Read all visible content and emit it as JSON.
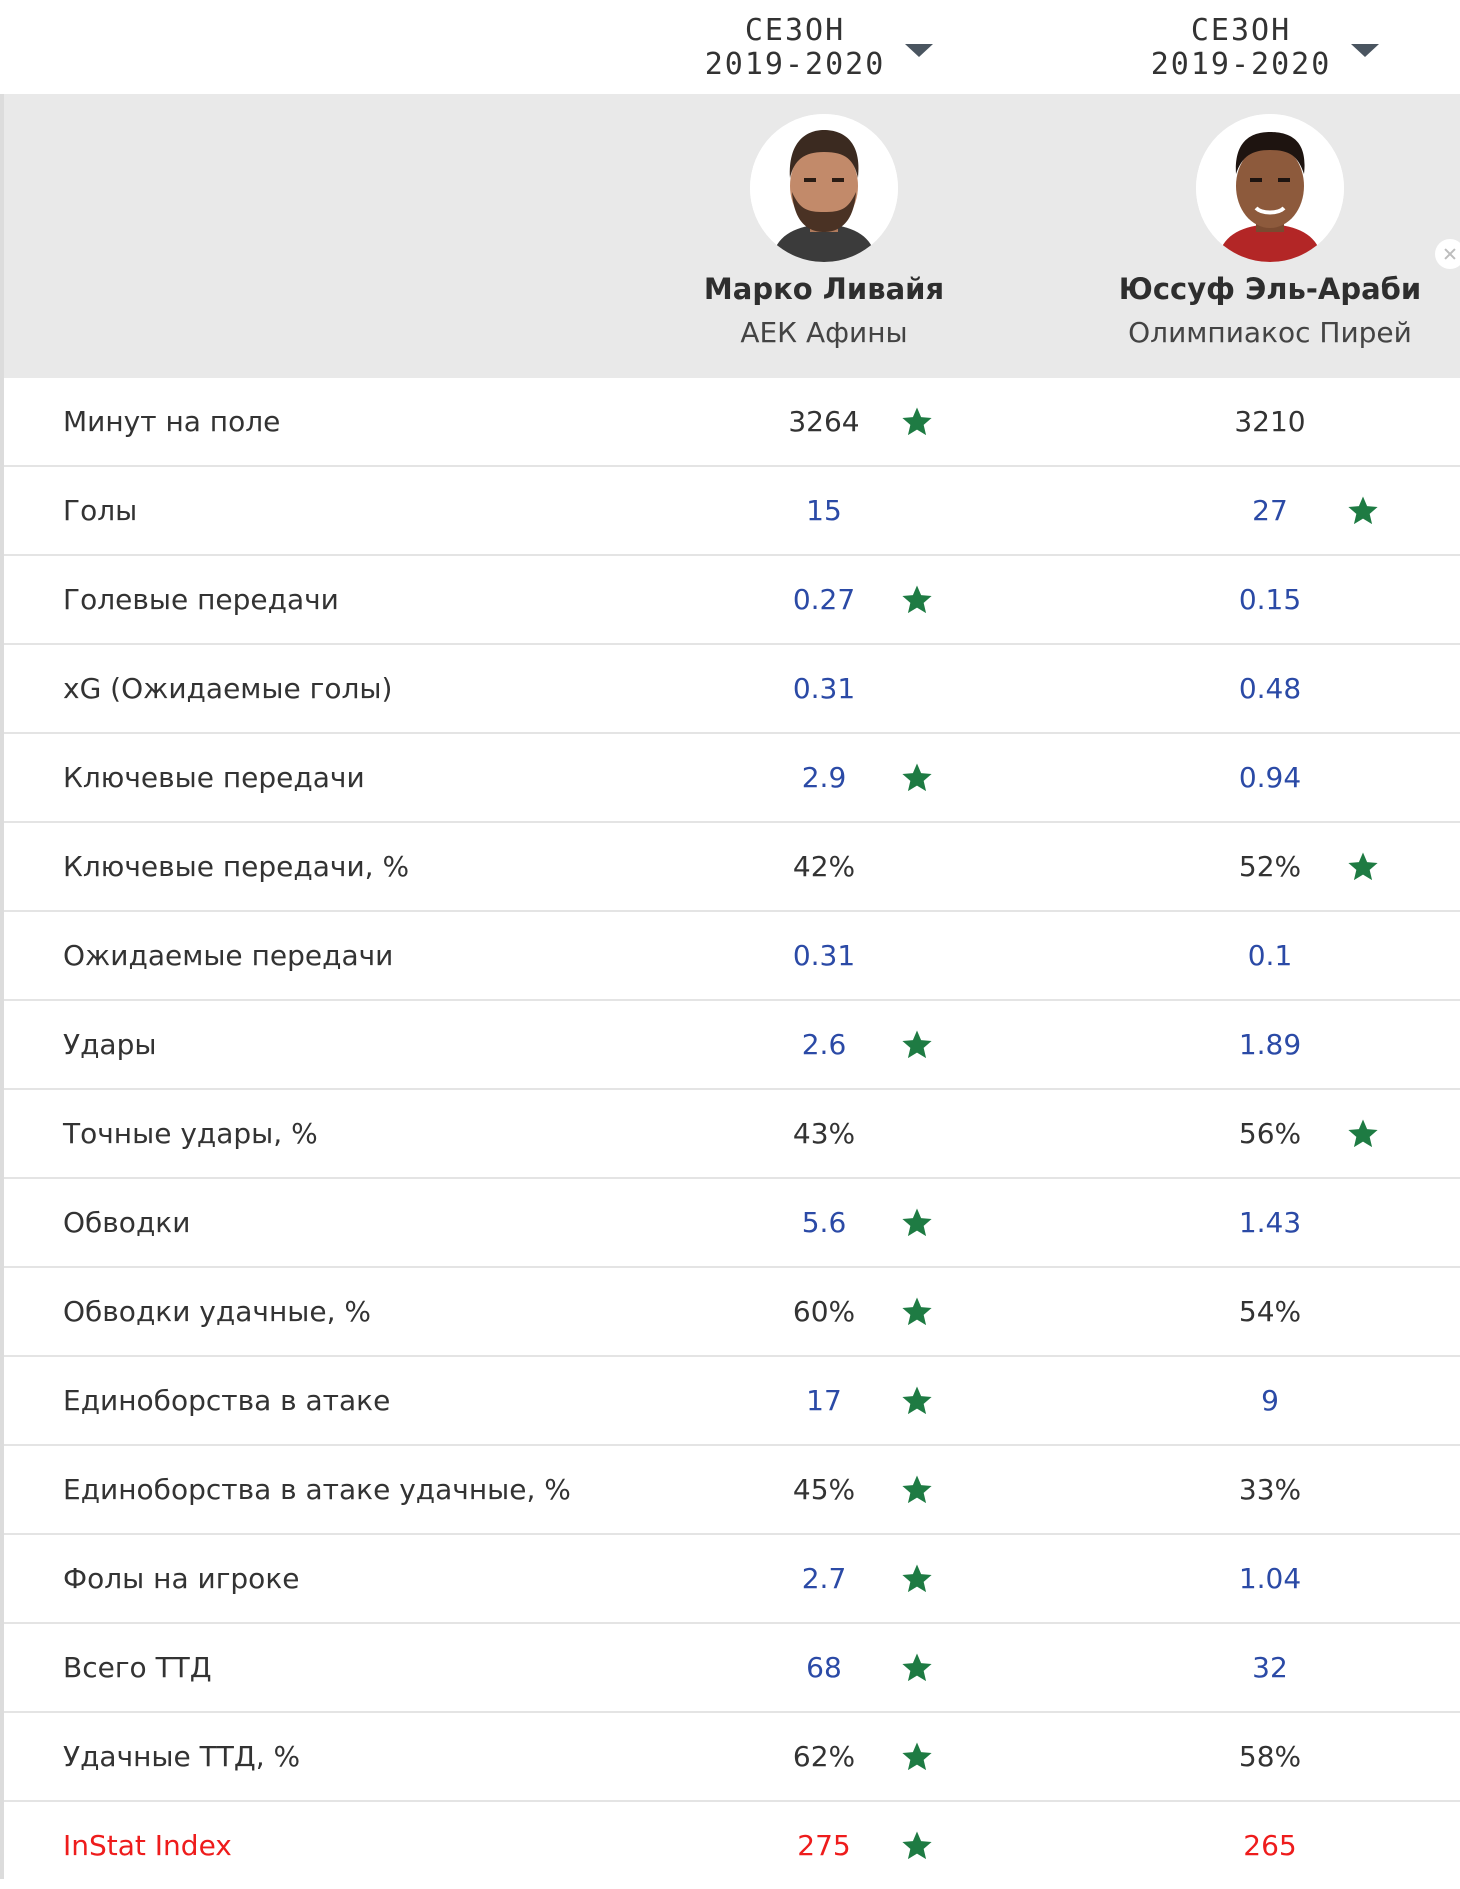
{
  "season_selectors": [
    {
      "label_line1": "СЕЗОН",
      "label_line2": "2019-2020"
    },
    {
      "label_line1": "СЕЗОН",
      "label_line2": "2019-2020"
    }
  ],
  "players": [
    {
      "name": "Марко Ливайя",
      "team": "АЕК Афины"
    },
    {
      "name": "Юссуф Эль-Араби",
      "team": "Олимпиакос Пирей"
    }
  ],
  "colors": {
    "star": "#1e7b43",
    "value_blue": "#2b4aa6",
    "highlight_red": "#ee1c1c",
    "header_bg": "#e9e9e9"
  },
  "stats": [
    {
      "label": "Минут на поле",
      "p1": "3264",
      "p2": "3210",
      "best": 1,
      "style": "dark"
    },
    {
      "label": "Голы",
      "p1": "15",
      "p2": "27",
      "best": 2,
      "style": "blue"
    },
    {
      "label": "Голевые передачи",
      "p1": "0.27",
      "p2": "0.15",
      "best": 1,
      "style": "blue"
    },
    {
      "label": "xG (Ожидаемые голы)",
      "p1": "0.31",
      "p2": "0.48",
      "best": 0,
      "style": "blue"
    },
    {
      "label": "Ключевые передачи",
      "p1": "2.9",
      "p2": "0.94",
      "best": 1,
      "style": "blue"
    },
    {
      "label": "Ключевые передачи, %",
      "p1": "42%",
      "p2": "52%",
      "best": 2,
      "style": "dark"
    },
    {
      "label": "Ожидаемые передачи",
      "p1": "0.31",
      "p2": "0.1",
      "best": 0,
      "style": "blue"
    },
    {
      "label": "Удары",
      "p1": "2.6",
      "p2": "1.89",
      "best": 1,
      "style": "blue"
    },
    {
      "label": "Точные удары, %",
      "p1": "43%",
      "p2": "56%",
      "best": 2,
      "style": "dark"
    },
    {
      "label": "Обводки",
      "p1": "5.6",
      "p2": "1.43",
      "best": 1,
      "style": "blue"
    },
    {
      "label": "Обводки удачные, %",
      "p1": "60%",
      "p2": "54%",
      "best": 1,
      "style": "dark"
    },
    {
      "label": "Единоборства в атаке",
      "p1": "17",
      "p2": "9",
      "best": 1,
      "style": "blue"
    },
    {
      "label": "Единоборства в атаке удачные, %",
      "p1": "45%",
      "p2": "33%",
      "best": 1,
      "style": "dark"
    },
    {
      "label": "Фолы на игроке",
      "p1": "2.7",
      "p2": "1.04",
      "best": 1,
      "style": "blue"
    },
    {
      "label": "Всего ТТД",
      "p1": "68",
      "p2": "32",
      "best": 1,
      "style": "blue"
    },
    {
      "label": "Удачные ТТД, %",
      "p1": "62%",
      "p2": "58%",
      "best": 1,
      "style": "dark"
    },
    {
      "label": "InStat Index",
      "p1": "275",
      "p2": "265",
      "best": 1,
      "style": "highlight"
    }
  ]
}
